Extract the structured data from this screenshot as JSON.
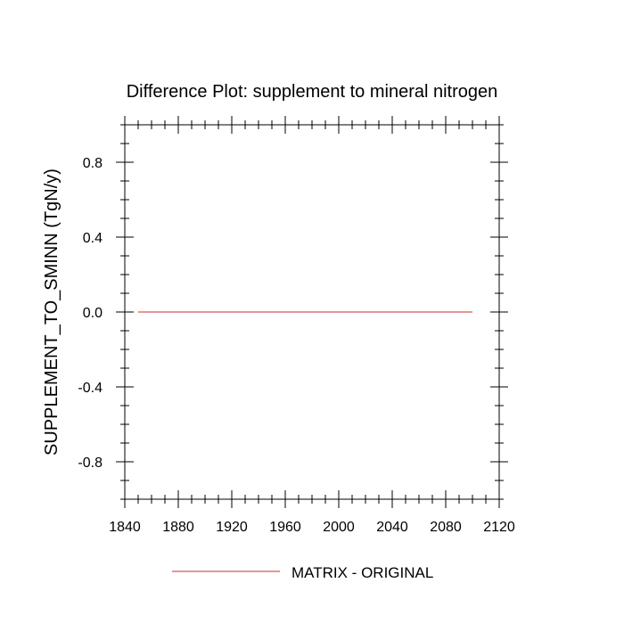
{
  "chart_data": {
    "type": "line",
    "title": "Difference Plot: supplement to mineral nitrogen",
    "xlabel": "",
    "ylabel": "SUPPLEMENT_TO_SMINN  (TgN/y)",
    "xlim": [
      1840,
      2120
    ],
    "ylim": [
      -1.0,
      1.0
    ],
    "x_ticks": [
      1840,
      1880,
      1920,
      1960,
      2000,
      2040,
      2080,
      2120
    ],
    "x_tick_labels": [
      "1840",
      "1880",
      "1920",
      "1960",
      "2000",
      "2040",
      "2080",
      "2120"
    ],
    "y_ticks": [
      -0.8,
      -0.4,
      0.0,
      0.4,
      0.8
    ],
    "y_tick_labels": [
      "-0.8",
      "-0.4",
      "0.0",
      "0.4",
      "0.8"
    ],
    "grid": false,
    "legend_position": "bottom",
    "series": [
      {
        "name": "MATRIX - ORIGINAL",
        "color": "#e07070",
        "x": [
          1850,
          2100
        ],
        "y": [
          0.0,
          0.0
        ]
      }
    ]
  }
}
